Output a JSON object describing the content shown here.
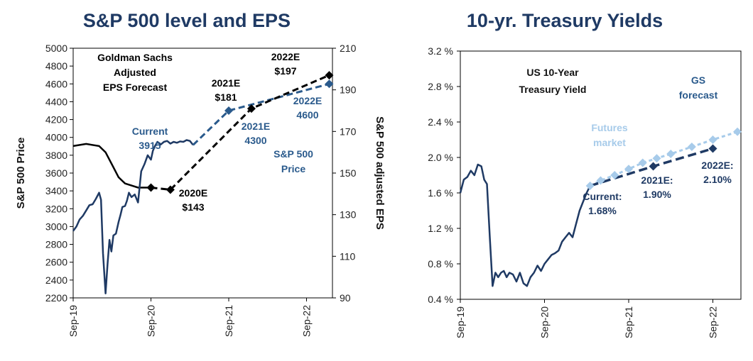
{
  "chart_data": [
    {
      "type": "line",
      "title": "S&P 500 level and EPS",
      "ylabel": "S&P 500 Price",
      "y2label": "S&P 500 adjusted EPS",
      "xlim": [
        "2019-09",
        "2022-12"
      ],
      "x_ticks": [
        "Sep-19",
        "Sep-20",
        "Sep-21",
        "Sep-22"
      ],
      "ylim": [
        2200,
        5000
      ],
      "y_ticks": [
        "2200",
        "2400",
        "2600",
        "2800",
        "3000",
        "3200",
        "3400",
        "3600",
        "3800",
        "4000",
        "4200",
        "4400",
        "4600",
        "4800",
        "5000"
      ],
      "y2lim": [
        90,
        210
      ],
      "y2_ticks": [
        "90",
        "110",
        "130",
        "150",
        "170",
        "190",
        "210"
      ],
      "colors": {
        "price": "#1f3a64",
        "eps": "#000000"
      },
      "annotations": {
        "eps_box": [
          "Goldman Sachs",
          "Adjusted",
          "EPS Forecast"
        ],
        "current": [
          "Current",
          "3915"
        ],
        "sp_label": [
          "S&P 500",
          "Price"
        ],
        "e2020": [
          "2020E",
          "$143"
        ],
        "e2021": [
          "2021E",
          "$181"
        ],
        "e2022": [
          "2022E",
          "$197"
        ],
        "p2021": [
          "2021E",
          "4300"
        ],
        "p2022": [
          "2022E",
          "4600"
        ]
      },
      "series": [
        {
          "name": "S&P 500 Price",
          "axis": "left",
          "x": [
            0,
            0.5,
            1,
            1.5,
            2,
            2.5,
            3,
            3.5,
            4,
            4.3,
            4.6,
            5,
            5.3,
            5.6,
            5.9,
            6.2,
            6.6,
            7,
            7.3,
            7.6,
            8,
            8.3,
            8.6,
            9,
            9.5,
            10,
            10.5,
            11,
            11.5,
            12,
            12.3,
            12.6,
            13,
            13.5,
            14,
            14.5,
            15,
            15.5,
            16,
            16.5,
            17,
            17.5,
            18,
            18.5
          ],
          "values": [
            2950,
            3000,
            3080,
            3120,
            3180,
            3240,
            3250,
            3310,
            3380,
            3300,
            2700,
            2250,
            2580,
            2850,
            2720,
            2900,
            2920,
            3050,
            3130,
            3220,
            3230,
            3290,
            3380,
            3330,
            3360,
            3270,
            3620,
            3700,
            3800,
            3750,
            3850,
            3900,
            3950,
            3920,
            3950,
            3960,
            3930,
            3950,
            3940,
            3955,
            3950,
            3970,
            3960,
            3915
          ]
        },
        {
          "name": "S&P 500 Price forecast",
          "axis": "left",
          "style": "dashed",
          "x": [
            18.5,
            24,
            39.5
          ],
          "values": [
            3915,
            4300,
            4600
          ]
        },
        {
          "name": "Adjusted EPS",
          "axis": "right",
          "x": [
            0,
            2,
            4,
            5,
            6,
            7,
            8,
            9,
            10,
            11,
            12
          ],
          "values": [
            163,
            164,
            163,
            160,
            154,
            148,
            145,
            144,
            143,
            143,
            143
          ]
        },
        {
          "name": "Adjusted EPS forecast",
          "axis": "right",
          "style": "dashed",
          "x": [
            12,
            15,
            27.5,
            39.5
          ],
          "values": [
            143,
            142,
            181,
            197
          ]
        }
      ]
    },
    {
      "type": "line",
      "title": "10-yr. Treasury Yields",
      "inner_title": [
        "US 10-Year",
        "Treasury Yield"
      ],
      "xlim": [
        "2019-09",
        "2022-12"
      ],
      "x_ticks": [
        "Sep-19",
        "Sep-20",
        "Sep-21",
        "Sep-22"
      ],
      "ylim": [
        0.4,
        3.2
      ],
      "y_ticks": [
        "0.4 %",
        "0.8 %",
        "1.2 %",
        "1.6 %",
        "2.0 %",
        "2.4 %",
        "2.8 %",
        "3.2 %"
      ],
      "colors": {
        "yield": "#1f3a64",
        "futures": "#a7cbea"
      },
      "annotations": {
        "current": [
          "Current:",
          "1.68%"
        ],
        "e2021": [
          "2021E:",
          "1.90%"
        ],
        "e2022": [
          "2022E:",
          "2.10%"
        ],
        "futures": [
          "Futures",
          "market"
        ],
        "gs": [
          "GS",
          "forecast"
        ]
      },
      "series": [
        {
          "name": "US 10-Year Treasury Yield",
          "x": [
            0,
            0.5,
            1,
            1.5,
            2,
            2.5,
            3,
            3.4,
            3.8,
            4.2,
            4.6,
            5,
            5.4,
            5.8,
            6.2,
            6.6,
            7,
            7.5,
            8,
            8.5,
            9,
            9.5,
            10,
            10.5,
            11,
            11.5,
            12,
            12.5,
            13,
            13.5,
            14,
            14.5,
            15,
            15.5,
            16,
            16.5,
            17,
            17.5,
            18,
            18.5
          ],
          "values": [
            1.6,
            1.75,
            1.78,
            1.85,
            1.8,
            1.92,
            1.9,
            1.75,
            1.7,
            1.1,
            0.55,
            0.7,
            0.65,
            0.7,
            0.72,
            0.65,
            0.7,
            0.68,
            0.6,
            0.7,
            0.58,
            0.55,
            0.65,
            0.7,
            0.78,
            0.72,
            0.8,
            0.85,
            0.9,
            0.92,
            0.95,
            1.05,
            1.1,
            1.15,
            1.1,
            1.25,
            1.4,
            1.5,
            1.6,
            1.68
          ]
        },
        {
          "name": "Futures market",
          "style": "dotted",
          "x": [
            18.5,
            20,
            22,
            24,
            26,
            28,
            30,
            33,
            36,
            39.5
          ],
          "values": [
            1.68,
            1.74,
            1.8,
            1.87,
            1.94,
            1.99,
            2.04,
            2.12,
            2.2,
            2.29
          ]
        },
        {
          "name": "GS forecast",
          "style": "dashed",
          "x": [
            18.5,
            27.5,
            36
          ],
          "values": [
            1.68,
            1.9,
            2.1
          ]
        }
      ]
    }
  ]
}
